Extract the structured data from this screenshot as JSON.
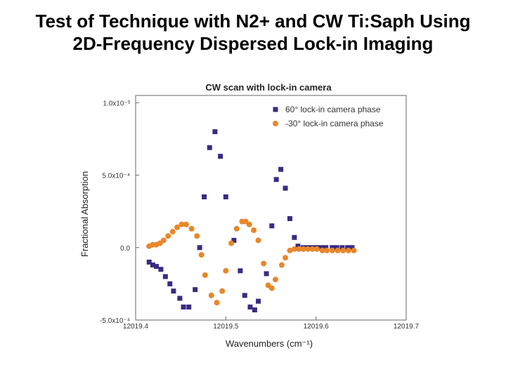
{
  "slide": {
    "title_line1": "Test of Technique with N2+ and CW Ti:Saph Using",
    "title_line2": "2D-Frequency Dispersed Lock-in Imaging"
  },
  "colors": {
    "series1": "#3b2a80",
    "series2": "#e8872a",
    "axis": "#666666"
  },
  "chart_data": {
    "type": "scatter",
    "title": "CW scan with lock-in camera",
    "xlabel": "Wavenumbers (cm⁻¹)",
    "ylabel": "Fractional Absorption",
    "xlim": [
      12019.4,
      12019.7
    ],
    "ylim": [
      -0.0005,
      0.00105
    ],
    "x_ticks": [
      {
        "value": 12019.4,
        "label": "12019.4"
      },
      {
        "value": 12019.5,
        "label": "12019.5"
      },
      {
        "value": 12019.6,
        "label": "12019.6"
      },
      {
        "value": 12019.7,
        "label": "12019.7"
      }
    ],
    "y_ticks": [
      {
        "value": -0.0005,
        "label": "-5.0x10⁻⁴"
      },
      {
        "value": 0.0,
        "label": "0.0"
      },
      {
        "value": 0.0005,
        "label": "5.0x10⁻⁴"
      },
      {
        "value": 0.001,
        "label": "1.0x10⁻³"
      }
    ],
    "legend_position": "top-right",
    "grid": false,
    "series": [
      {
        "name": "60° lock-in camera phase",
        "marker": "square",
        "points": [
          [
            12019.415,
            -0.0001
          ],
          [
            12019.419,
            -0.00012
          ],
          [
            12019.423,
            -0.00013
          ],
          [
            12019.428,
            -0.00015
          ],
          [
            12019.433,
            -0.0002
          ],
          [
            12019.438,
            -0.00025
          ],
          [
            12019.442,
            -0.0003
          ],
          [
            12019.449,
            -0.00035
          ],
          [
            12019.453,
            -0.00041
          ],
          [
            12019.459,
            -0.00041
          ],
          [
            12019.466,
            -0.00029
          ],
          [
            12019.471,
            0.0
          ],
          [
            12019.476,
            0.00035
          ],
          [
            12019.482,
            0.00069
          ],
          [
            12019.488,
            0.0008
          ],
          [
            12019.494,
            0.00063
          ],
          [
            12019.5,
            0.00035
          ],
          [
            12019.509,
            5e-05
          ],
          [
            12019.516,
            -0.00016
          ],
          [
            12019.521,
            -0.00033
          ],
          [
            12019.527,
            -0.00041
          ],
          [
            12019.532,
            -0.00043
          ],
          [
            12019.536,
            -0.00037
          ],
          [
            12019.545,
            -0.00018
          ],
          [
            12019.551,
            0.00015
          ],
          [
            12019.556,
            0.00047
          ],
          [
            12019.561,
            0.00054
          ],
          [
            12019.566,
            0.00041
          ],
          [
            12019.571,
            0.0002
          ],
          [
            12019.576,
            7e-05
          ],
          [
            12019.58,
            1e-05
          ],
          [
            12019.586,
            0.0
          ],
          [
            12019.591,
            0.0
          ],
          [
            12019.596,
            0.0
          ],
          [
            12019.601,
            0.0
          ],
          [
            12019.606,
            0.0
          ],
          [
            12019.611,
            0.0
          ],
          [
            12019.618,
            0.0
          ],
          [
            12019.623,
            0.0
          ],
          [
            12019.629,
            0.0
          ],
          [
            12019.635,
            0.0
          ],
          [
            12019.64,
            0.0
          ]
        ]
      },
      {
        "name": "-30° lock-in camera phase",
        "marker": "circle",
        "points": [
          [
            12019.415,
            1e-05
          ],
          [
            12019.419,
            2e-05
          ],
          [
            12019.423,
            2e-05
          ],
          [
            12019.427,
            3e-05
          ],
          [
            12019.431,
            5e-05
          ],
          [
            12019.436,
            8e-05
          ],
          [
            12019.441,
            0.00011
          ],
          [
            12019.446,
            0.00014
          ],
          [
            12019.451,
            0.00016
          ],
          [
            12019.456,
            0.00016
          ],
          [
            12019.462,
            0.00013
          ],
          [
            12019.468,
            8e-05
          ],
          [
            12019.473,
            -5e-05
          ],
          [
            12019.477,
            -0.00019
          ],
          [
            12019.484,
            -0.00033
          ],
          [
            12019.49,
            -0.00038
          ],
          [
            12019.496,
            -0.0003
          ],
          [
            12019.5,
            -0.00016
          ],
          [
            12019.506,
            3e-05
          ],
          [
            12019.512,
            0.00013
          ],
          [
            12019.518,
            0.00018
          ],
          [
            12019.522,
            0.00018
          ],
          [
            12019.526,
            0.00016
          ],
          [
            12019.531,
            0.00012
          ],
          [
            12019.536,
            5e-05
          ],
          [
            12019.542,
            -0.00011
          ],
          [
            12019.547,
            -0.00026
          ],
          [
            12019.551,
            -0.00028
          ],
          [
            12019.555,
            -0.00022
          ],
          [
            12019.562,
            -0.00012
          ],
          [
            12019.566,
            -7e-05
          ],
          [
            12019.571,
            -2e-05
          ],
          [
            12019.576,
            -1e-05
          ],
          [
            12019.581,
            -1e-05
          ],
          [
            12019.586,
            -1e-05
          ],
          [
            12019.591,
            -1e-05
          ],
          [
            12019.596,
            -1e-05
          ],
          [
            12019.601,
            -1e-05
          ],
          [
            12019.607,
            -2e-05
          ],
          [
            12019.612,
            -2e-05
          ],
          [
            12019.618,
            -2e-05
          ],
          [
            12019.624,
            -2e-05
          ],
          [
            12019.63,
            -2e-05
          ],
          [
            12019.636,
            -2e-05
          ],
          [
            12019.642,
            -2e-05
          ]
        ]
      }
    ]
  }
}
